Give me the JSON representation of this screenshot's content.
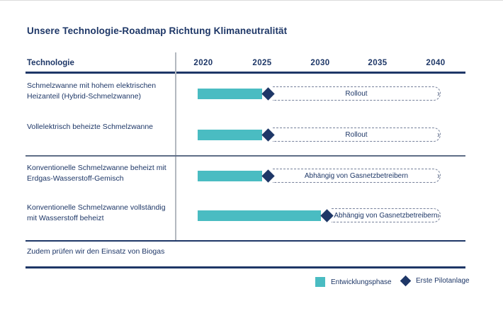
{
  "title": "Unsere Technologie-Roadmap Richtung Klimaneutralität",
  "header": {
    "technology_label": "Technologie",
    "years": [
      "2020",
      "2025",
      "2030",
      "2035",
      "2040"
    ]
  },
  "chart_data": {
    "type": "gantt",
    "title": "Unsere Technologie-Roadmap Richtung Klimaneutralität",
    "x_axis": {
      "ticks": [
        2020,
        2025,
        2030,
        2035,
        2040
      ],
      "range": [
        2019.5,
        2040.5
      ],
      "unit": "Jahr"
    },
    "rows": [
      {
        "label": "Schmelzwanne mit hohem elektrischen Heizanteil (Hybrid-Schmelzwanne)",
        "development_start": 2019.5,
        "development_end": 2025,
        "first_pilot": 2025,
        "phase_label": "Rollout",
        "phase_end": 2040
      },
      {
        "label": "Vollelektrisch beheizte Schmelzwanne",
        "development_start": 2019.5,
        "development_end": 2025,
        "first_pilot": 2025,
        "phase_label": "Rollout",
        "phase_end": 2040
      },
      {
        "label": "Konventionelle Schmelzwanne beheizt mit Erdgas-Wasserstoff-Gemisch",
        "development_start": 2019.5,
        "development_end": 2025,
        "first_pilot": 2025,
        "phase_label": "Abhängig von Gasnetzbetreibern",
        "phase_end": 2040
      },
      {
        "label": "Konventionelle Schmelzwanne vollständig mit Wasserstoff beheizt",
        "development_start": 2019.5,
        "development_end": 2030,
        "first_pilot": 2030,
        "phase_label": "Abhängig von Gasnetzbetreibern",
        "phase_end": 2040
      }
    ],
    "legend": [
      {
        "marker": "square",
        "label": "Entwicklungsphase"
      },
      {
        "marker": "diamond",
        "label": "Erste Pilotanlage"
      }
    ],
    "footnote": "Zudem prüfen wir den Einsatz von Biogas"
  },
  "colors": {
    "navy": "#1e3767",
    "teal": "#4abcc2",
    "dashed_outline": "#76819b",
    "divider_gray": "#b3b8bf",
    "mid_rule": "#5f6e87"
  }
}
